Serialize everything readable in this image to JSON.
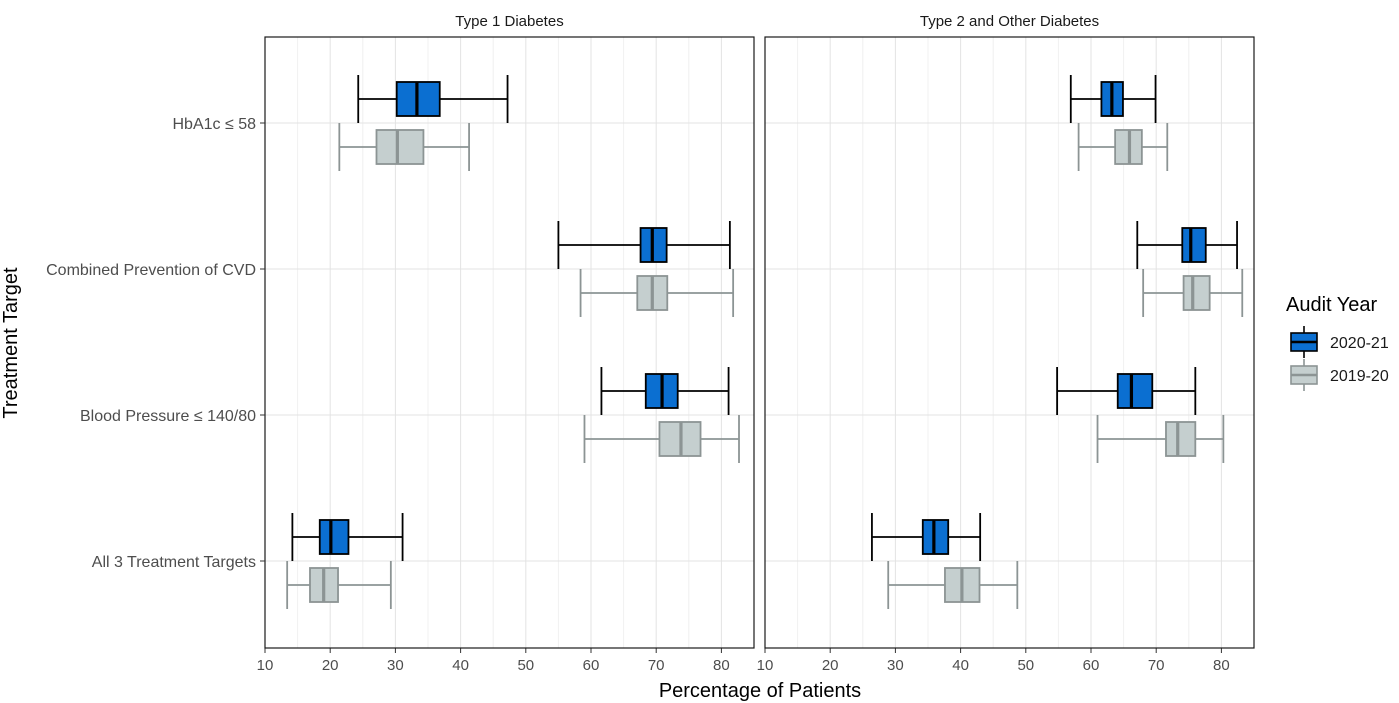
{
  "chart_data": {
    "type": "boxplot",
    "orientation": "horizontal",
    "xlabel": "Percentage of Patients",
    "ylabel": "Treatment Target",
    "xlim": [
      10,
      85
    ],
    "xticks": [
      10,
      20,
      30,
      40,
      50,
      60,
      70,
      80
    ],
    "grid": true,
    "legend": {
      "title": "Audit Year",
      "placement": "right",
      "entries": [
        {
          "name": "2020-21",
          "fill": "#0b6fd1",
          "stroke": "#000000"
        },
        {
          "name": "2019-20",
          "fill": "#c5cfcf",
          "stroke": "#8c9494"
        }
      ]
    },
    "categories": [
      "HbA1c ≤ 58",
      "Combined Prevention of CVD",
      "Blood Pressure ≤ 140/80",
      "All 3 Treatment Targets"
    ],
    "panels": [
      {
        "title": "Type 1 Diabetes",
        "boxes": [
          {
            "category": "HbA1c ≤ 58",
            "series": "2020-21",
            "min": 24.3,
            "q1": 30.2,
            "median": 33.3,
            "q3": 36.8,
            "max": 47.2
          },
          {
            "category": "HbA1c ≤ 58",
            "series": "2019-20",
            "min": 21.4,
            "q1": 27.1,
            "median": 30.3,
            "q3": 34.3,
            "max": 41.3
          },
          {
            "category": "Combined Prevention of CVD",
            "series": "2020-21",
            "min": 55.0,
            "q1": 67.6,
            "median": 69.4,
            "q3": 71.6,
            "max": 81.3
          },
          {
            "category": "Combined Prevention of CVD",
            "series": "2019-20",
            "min": 58.4,
            "q1": 67.1,
            "median": 69.4,
            "q3": 71.7,
            "max": 81.8
          },
          {
            "category": "Blood Pressure ≤ 140/80",
            "series": "2020-21",
            "min": 61.6,
            "q1": 68.4,
            "median": 70.9,
            "q3": 73.3,
            "max": 81.1
          },
          {
            "category": "Blood Pressure ≤ 140/80",
            "series": "2019-20",
            "min": 59.0,
            "q1": 70.5,
            "median": 73.8,
            "q3": 76.8,
            "max": 82.7
          },
          {
            "category": "All 3 Treatment Targets",
            "series": "2020-21",
            "min": 14.2,
            "q1": 18.4,
            "median": 20.1,
            "q3": 22.8,
            "max": 31.1
          },
          {
            "category": "All 3 Treatment Targets",
            "series": "2019-20",
            "min": 13.4,
            "q1": 16.9,
            "median": 19.0,
            "q3": 21.2,
            "max": 29.3
          }
        ]
      },
      {
        "title": "Type 2 and Other Diabetes",
        "boxes": [
          {
            "category": "HbA1c ≤ 58",
            "series": "2020-21",
            "min": 56.9,
            "q1": 61.6,
            "median": 63.2,
            "q3": 64.9,
            "max": 69.9
          },
          {
            "category": "HbA1c ≤ 58",
            "series": "2019-20",
            "min": 58.1,
            "q1": 63.7,
            "median": 65.9,
            "q3": 67.8,
            "max": 71.7
          },
          {
            "category": "Combined Prevention of CVD",
            "series": "2020-21",
            "min": 67.1,
            "q1": 74.0,
            "median": 75.3,
            "q3": 77.6,
            "max": 82.4
          },
          {
            "category": "Combined Prevention of CVD",
            "series": "2019-20",
            "min": 68.0,
            "q1": 74.2,
            "median": 75.6,
            "q3": 78.2,
            "max": 83.2
          },
          {
            "category": "Blood Pressure ≤ 140/80",
            "series": "2020-21",
            "min": 54.8,
            "q1": 64.1,
            "median": 66.2,
            "q3": 69.4,
            "max": 76.0
          },
          {
            "category": "Blood Pressure ≤ 140/80",
            "series": "2019-20",
            "min": 61.0,
            "q1": 71.5,
            "median": 73.3,
            "q3": 76.0,
            "max": 80.3
          },
          {
            "category": "All 3 Treatment Targets",
            "series": "2020-21",
            "min": 26.4,
            "q1": 34.2,
            "median": 35.9,
            "q3": 38.1,
            "max": 43.0
          },
          {
            "category": "All 3 Treatment Targets",
            "series": "2019-20",
            "min": 28.9,
            "q1": 37.6,
            "median": 40.2,
            "q3": 42.9,
            "max": 48.7
          }
        ]
      }
    ]
  }
}
